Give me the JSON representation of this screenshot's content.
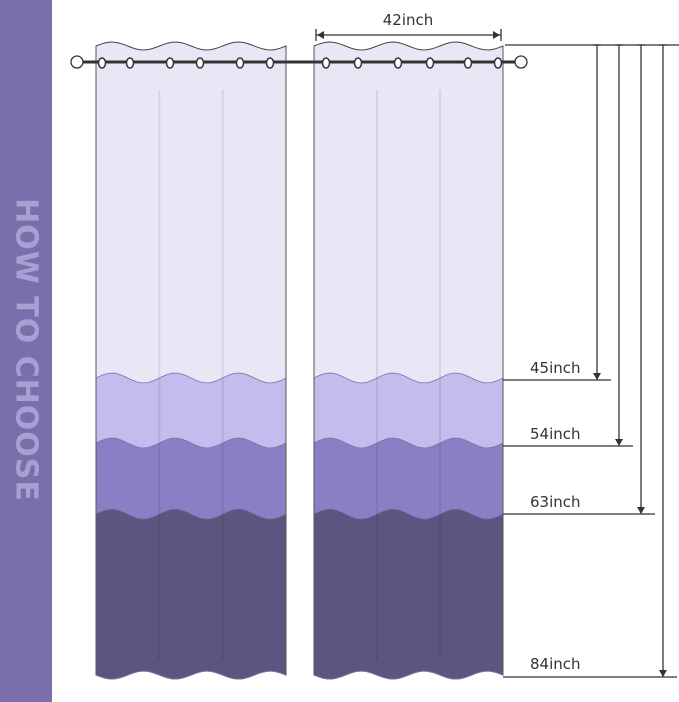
{
  "sidebar": {
    "title": "HOW TO CHOOSE",
    "color": "#7b6fab"
  },
  "width_label": "42inch",
  "lengths": [
    {
      "label": "45inch",
      "color": "#e9e6f6"
    },
    {
      "label": "54inch",
      "color": "#c5bced"
    },
    {
      "label": "63inch",
      "color": "#8a7fc4"
    },
    {
      "label": "84inch",
      "color": "#5d557f"
    }
  ]
}
